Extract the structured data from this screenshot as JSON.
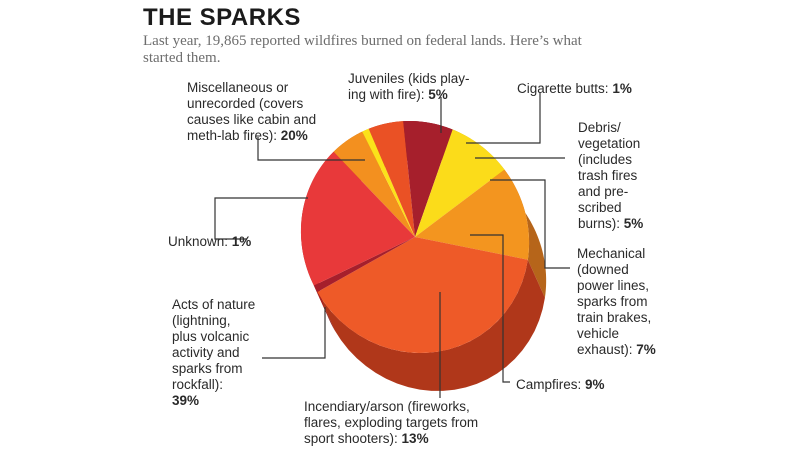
{
  "title": "THE SPARKS",
  "subtitle": "Last year, 19,865 reported wildfires burned on federal lands. Here’s what started them.",
  "chart_data": {
    "type": "pie",
    "title": "THE SPARKS",
    "subtitle": "Last year, 19,865 reported wildfires burned on federal lands. Here’s what started them.",
    "slices": [
      {
        "label": "Juveniles (kids playing with fire):",
        "pct": "5%",
        "value": 5,
        "color": "#f3901f",
        "side": "#b65f10"
      },
      {
        "label": "Cigarette butts:",
        "pct": "1%",
        "value": 1,
        "color": "#fbe21a",
        "side": "#c4ac10"
      },
      {
        "label": "Debris/ vegetation (includes trash fires and pre- scribed burns):",
        "pct": "5%",
        "value": 5,
        "color": "#ea5125",
        "side": "#a83412"
      },
      {
        "label": "Mechanical (downed power lines, sparks from train brakes, vehicle exhaust):",
        "pct": "7%",
        "value": 7,
        "color": "#a61f2c",
        "side": "#7a111c"
      },
      {
        "label": "Campfires:",
        "pct": "9%",
        "value": 9,
        "color": "#fbdc1a",
        "side": "#c3a815"
      },
      {
        "label": "Incendiary/arson (fireworks, flares, exploding targets from sport shooters):",
        "pct": "13%",
        "value": 13,
        "color": "#f3951f",
        "side": "#b6651a"
      },
      {
        "label": "Acts of nature (lightning, plus volcanic activity and sparks from rockfall):",
        "pct": "39%",
        "value": 39,
        "color": "#ee5a28",
        "side": "#b0371a"
      },
      {
        "label": "Unknown:",
        "pct": "1%",
        "value": 1,
        "color": "#a61f2c",
        "side": "#7a111c"
      },
      {
        "label": "Miscellaneous or unrecorded (covers causes like cabin and meth-lab fires):",
        "pct": "20%",
        "value": 20,
        "color": "#e8393a",
        "side": "#a8211f"
      }
    ]
  },
  "labels": {
    "juveniles_text": "Juveniles (kids play-\ning with fire): ",
    "juveniles_pct": "5%",
    "cigarette_text": "Cigarette butts: ",
    "cigarette_pct": "1%",
    "debris_text": "Debris/\nvegetation\n(includes\ntrash fires\nand pre-\nscribed\nburns): ",
    "debris_pct": "5%",
    "mechanical_text": "Mechanical\n(downed\npower lines,\nsparks from\ntrain brakes,\nvehicle\nexhaust): ",
    "mechanical_pct": "7%",
    "campfires_text": "Campfires: ",
    "campfires_pct": "9%",
    "incendiary_text": "Incendiary/arson (fireworks,\nflares, exploding targets from\nsport shooters): ",
    "incendiary_pct": "13%",
    "nature_text": "Acts of nature\n(lightning,\nplus volcanic\nactivity and\nsparks from\nrockfall):\n",
    "nature_pct": "39%",
    "unknown_text": "Unknown: ",
    "unknown_pct": "1%",
    "misc_text": "Miscellaneous or\nunrecorded (covers\ncauses like cabin and\nmeth-lab fires): ",
    "misc_pct": "20%"
  }
}
